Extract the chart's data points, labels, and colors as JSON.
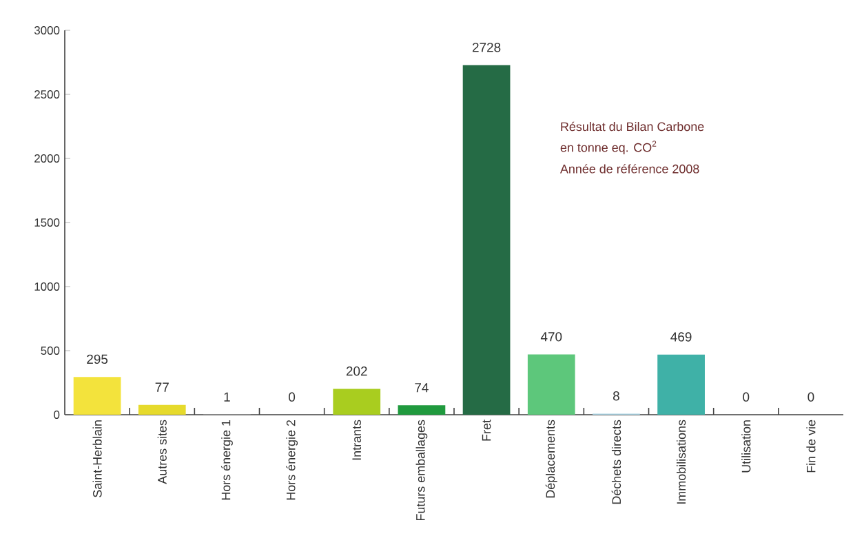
{
  "chart_data": {
    "type": "bar",
    "categories": [
      "Saint-Herblain",
      "Autres sites",
      "Hors énergie 1",
      "Hors énergie 2",
      "Intrants",
      "Futurs emballages",
      "Fret",
      "Déplacements",
      "Déchets directs",
      "Immobilisations",
      "Utilisation",
      "Fin de vie"
    ],
    "values": [
      295,
      77,
      1,
      0,
      202,
      74,
      2728,
      470,
      8,
      469,
      0,
      0
    ],
    "colors": [
      "#f3e33c",
      "#e6da2c",
      "#d9d9d9",
      "#d9d9d9",
      "#a9cd1f",
      "#209a3e",
      "#256b45",
      "#5dc77b",
      "#a9d3e3",
      "#3fb1a7",
      "#d9d9d9",
      "#d9d9d9"
    ],
    "ylim": [
      0,
      3000
    ],
    "yticks": [
      0,
      500,
      1000,
      1500,
      2000,
      2500,
      3000
    ],
    "data_labels": true,
    "grid": false,
    "annotations": [
      "Résultat du Bilan Carbone",
      "en tonne eq. CO$^{2}$",
      "Année de référence 2008"
    ]
  }
}
